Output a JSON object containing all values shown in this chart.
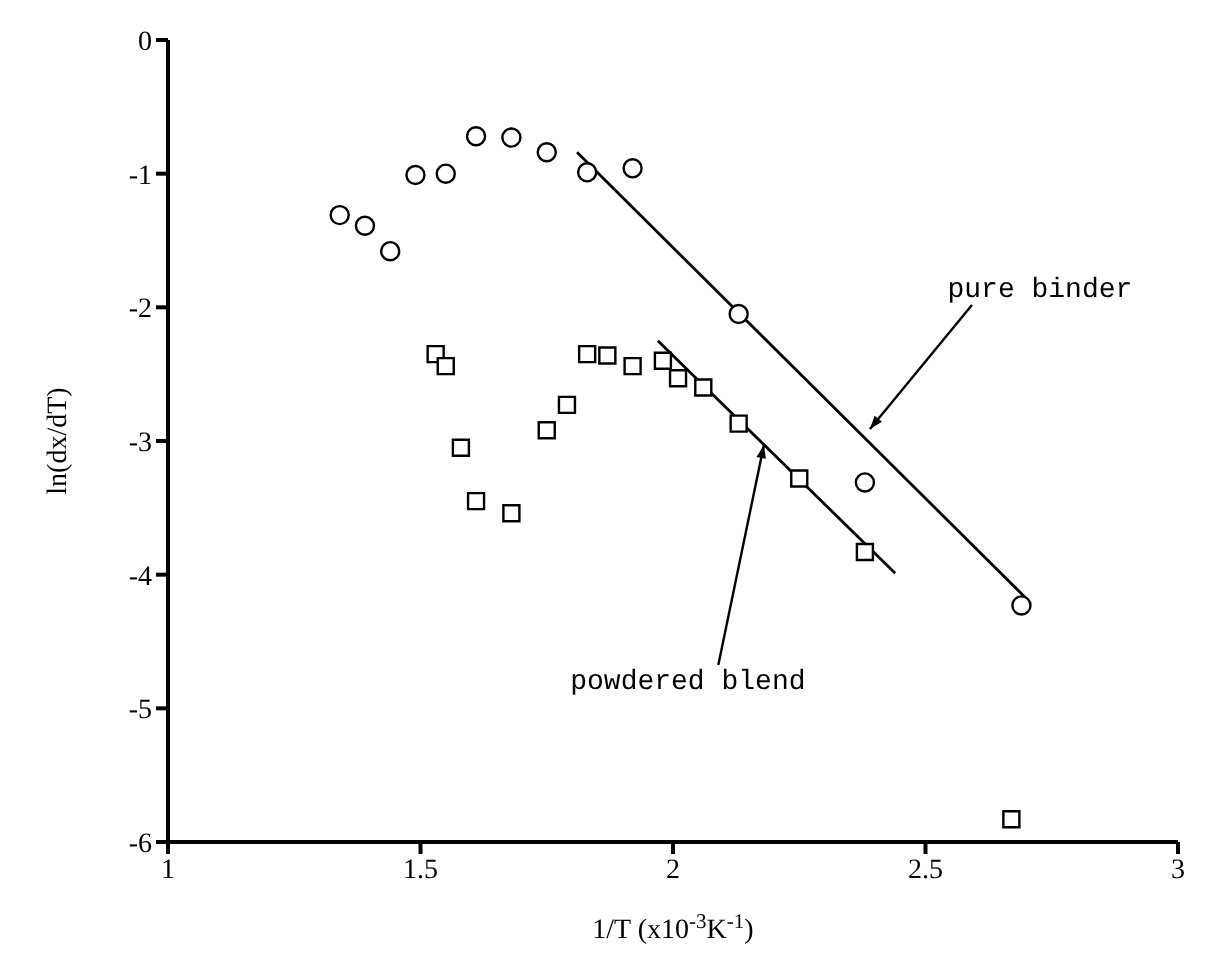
{
  "chart_data": {
    "type": "scatter",
    "xlabel": "1/T  (x10$^{-3}$K$^{-1}$)",
    "ylabel": "ln(dx/dT)",
    "xlim": [
      1,
      3
    ],
    "xticks": [
      1,
      1.5,
      2,
      2.5,
      3
    ],
    "ylim": [
      -6,
      0
    ],
    "yticks": [
      -6,
      -5,
      -4,
      -3,
      -2,
      -1,
      0
    ],
    "series": [
      {
        "marker": "circle",
        "color": "#000000",
        "x": [
          1.34,
          1.39,
          1.44,
          1.49,
          1.55,
          1.61,
          1.68,
          1.75,
          1.83,
          1.92,
          2.13,
          2.38,
          2.69
        ],
        "values": [
          -1.31,
          -1.39,
          -1.58,
          -1.01,
          -1.0,
          -0.72,
          -0.73,
          -0.84,
          -0.99,
          -0.96,
          -2.05,
          -3.31,
          -4.23
        ]
      },
      {
        "marker": "square",
        "color": "#000000",
        "x": [
          1.53,
          1.55,
          1.58,
          1.61,
          1.68,
          1.75,
          1.79,
          1.83,
          1.87,
          1.92,
          1.98,
          2.01,
          2.06,
          2.13,
          2.25,
          2.38,
          2.67
        ],
        "values": [
          -2.35,
          -2.44,
          -3.05,
          -3.45,
          -3.54,
          -2.92,
          -2.73,
          -2.35,
          -2.36,
          -2.44,
          -2.4,
          -2.53,
          -2.6,
          -2.87,
          -3.28,
          -3.83,
          -5.83
        ]
      },
      {
        "type": "line",
        "marker": "none",
        "line_style": "solid",
        "color": "#000000",
        "x": [
          1.81,
          2.7
        ],
        "values": [
          -0.84,
          -4.18
        ]
      },
      {
        "type": "line",
        "marker": "none",
        "line_style": "solid",
        "color": "#000000",
        "x": [
          1.97,
          2.44
        ],
        "values": [
          -2.25,
          -3.99
        ]
      }
    ],
    "annotations": [
      {
        "text": "pure binder",
        "x": 2.39,
        "y": -2.91
      },
      {
        "text": "powdered blend",
        "x": 2.18,
        "y": -3.03
      }
    ]
  }
}
